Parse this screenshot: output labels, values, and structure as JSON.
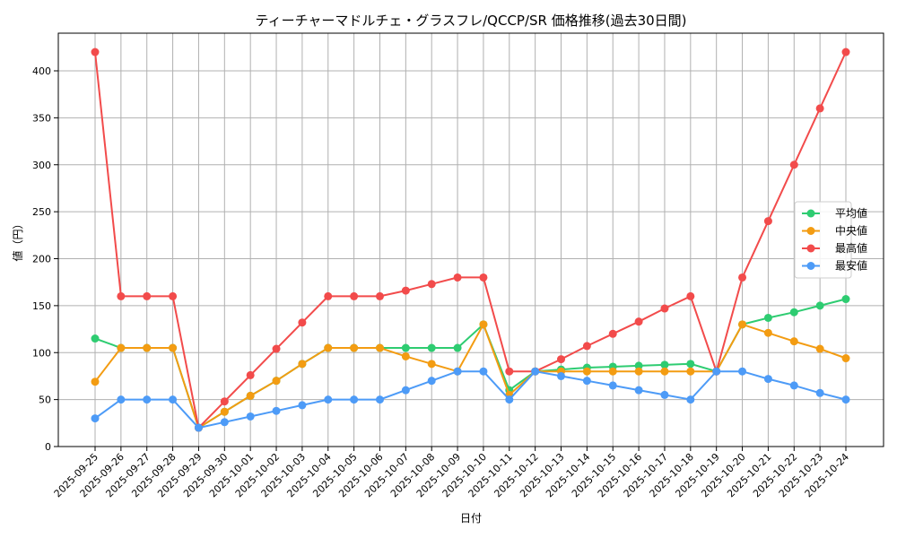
{
  "chart_data": {
    "type": "line",
    "title": "ティーチャーマドルチェ・グラスフレ/QCCP/SR 価格推移(過去30日間)",
    "xlabel": "日付",
    "ylabel": "値（円）",
    "ylim": [
      0,
      440
    ],
    "yticks": [
      0,
      50,
      100,
      150,
      200,
      250,
      300,
      350,
      400
    ],
    "grid": true,
    "legend_position": "right-center",
    "x": [
      "2025-09-25",
      "2025-09-26",
      "2025-09-27",
      "2025-09-28",
      "2025-09-29",
      "2025-09-30",
      "2025-10-01",
      "2025-10-02",
      "2025-10-03",
      "2025-10-04",
      "2025-10-05",
      "2025-10-06",
      "2025-10-07",
      "2025-10-08",
      "2025-10-09",
      "2025-10-10",
      "2025-10-11",
      "2025-10-12",
      "2025-10-13",
      "2025-10-14",
      "2025-10-15",
      "2025-10-16",
      "2025-10-17",
      "2025-10-18",
      "2025-10-19",
      "2025-10-20",
      "2025-10-21",
      "2025-10-22",
      "2025-10-23",
      "2025-10-24"
    ],
    "series": [
      {
        "name": "平均値",
        "color": "#2ecc71",
        "values": [
          115,
          105,
          105,
          105,
          20,
          37,
          54,
          70,
          88,
          105,
          105,
          105,
          105,
          105,
          105,
          130,
          60,
          80,
          82,
          84,
          85,
          86,
          87,
          88,
          80,
          130,
          137,
          143,
          150,
          157
        ]
      },
      {
        "name": "中央値",
        "color": "#f39c12",
        "values": [
          69,
          105,
          105,
          105,
          20,
          37,
          54,
          70,
          88,
          105,
          105,
          105,
          96,
          88,
          80,
          130,
          55,
          80,
          80,
          80,
          80,
          80,
          80,
          80,
          80,
          130,
          121,
          112,
          104,
          94
        ]
      },
      {
        "name": "最高値",
        "color": "#f24b4b",
        "values": [
          420,
          160,
          160,
          160,
          20,
          48,
          76,
          104,
          132,
          160,
          160,
          160,
          166,
          173,
          180,
          180,
          80,
          80,
          93,
          107,
          120,
          133,
          147,
          160,
          80,
          180,
          240,
          300,
          360,
          420
        ]
      },
      {
        "name": "最安値",
        "color": "#4d9bf7",
        "values": [
          30,
          50,
          50,
          50,
          20,
          26,
          32,
          38,
          44,
          50,
          50,
          50,
          60,
          70,
          80,
          80,
          50,
          80,
          75,
          70,
          65,
          60,
          55,
          50,
          80,
          80,
          72,
          65,
          57,
          50
        ]
      }
    ]
  }
}
